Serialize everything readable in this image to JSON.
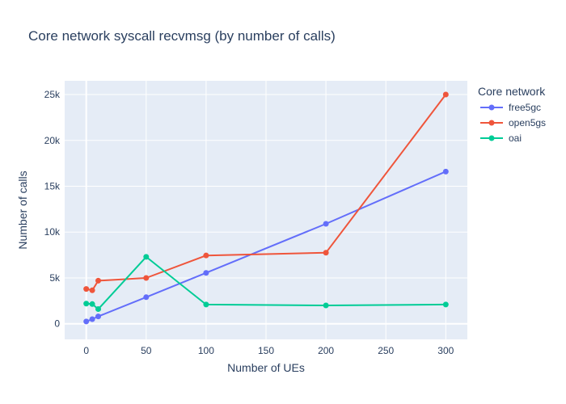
{
  "chart_data": {
    "type": "line",
    "title": "Core network syscall recvmsg (by number of calls)",
    "xlabel": "Number of UEs",
    "ylabel": "Number of calls",
    "xlim": [
      -18,
      318
    ],
    "ylim": [
      -1700,
      26500
    ],
    "x_ticks": [
      0,
      50,
      100,
      150,
      200,
      250,
      300
    ],
    "y_ticks": [
      0,
      5000,
      10000,
      15000,
      20000,
      25000
    ],
    "y_tick_labels": [
      "0",
      "5k",
      "10k",
      "15k",
      "20k",
      "25k"
    ],
    "grid": true,
    "legend": {
      "title": "Core network",
      "position": "top-right"
    },
    "series": [
      {
        "name": "free5gc",
        "color": "#636efa",
        "x": [
          0,
          5,
          10,
          50,
          100,
          200,
          300
        ],
        "y": [
          250,
          500,
          800,
          2900,
          5550,
          10900,
          16600
        ]
      },
      {
        "name": "open5gs",
        "color": "#ef553b",
        "x": [
          0,
          5,
          10,
          50,
          100,
          200,
          300
        ],
        "y": [
          3800,
          3650,
          4700,
          5000,
          7450,
          7750,
          25000
        ]
      },
      {
        "name": "oai",
        "color": "#00cc96",
        "x": [
          0,
          5,
          10,
          50,
          100,
          200,
          300
        ],
        "y": [
          2200,
          2150,
          1600,
          7300,
          2100,
          2000,
          2100
        ]
      }
    ]
  }
}
